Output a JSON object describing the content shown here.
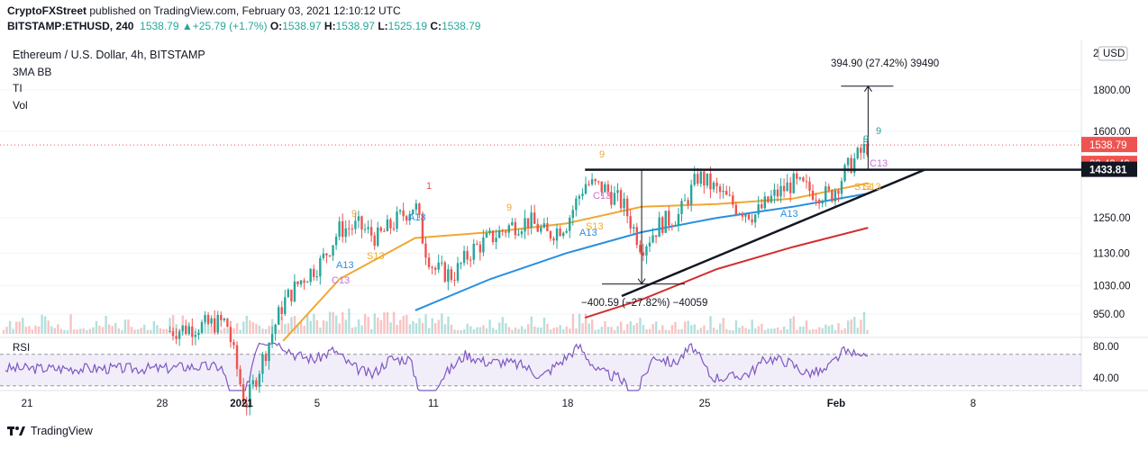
{
  "header": {
    "publisher": "CryptoFXStreet",
    "published_text": "published on TradingView.com, February 03, 2021 12:10:12 UTC",
    "symbol": "BITSTAMP:ETHUSD, 240",
    "last": "1538.79",
    "change": "+25.79 (+1.7%)",
    "o_label": "O:",
    "o_value": "1538.97",
    "h_label": "H:",
    "h_value": "1538.97",
    "l_label": "L:",
    "l_value": "1525.19",
    "c_label": "C:",
    "c_value": "1538.79"
  },
  "legend": {
    "title": "Ethereum / U.S. Dollar, 4h, BITSTAMP",
    "indicators": [
      "3MA BB",
      "TI",
      "Vol"
    ]
  },
  "footer": {
    "brand": "TradingView"
  },
  "chart_data": {
    "type": "candlestick",
    "title": "Ethereum / U.S. Dollar, 4h, BITSTAMP",
    "currency_label": "USD",
    "price_axis": {
      "ticks": [
        950,
        1030,
        1130,
        1250,
        1600,
        1800
      ],
      "tick_labels": [
        "950.00",
        "1030.00",
        "1130.00",
        "1250.00",
        "1600.00",
        "1800.00"
      ],
      "top_label": "2",
      "scale": "log",
      "range": [
        900,
        2050
      ]
    },
    "price_badges": [
      {
        "value": 1538.79,
        "label": "1538.79",
        "color": "#ef5350"
      },
      {
        "label": "03:49:49",
        "color": "#ef5350"
      },
      {
        "value": 1433.81,
        "label": "1433.81",
        "color": "#131722"
      }
    ],
    "time_axis": [
      "21",
      "28",
      "2021",
      "5",
      "11",
      "18",
      "25",
      "Feb",
      "8"
    ],
    "price_path": [
      [
        "2020-12-28",
        905
      ],
      [
        "2020-12-31",
        930
      ],
      [
        "2021-01-01",
        730
      ],
      [
        "2021-01-03",
        980
      ],
      [
        "2021-01-04",
        1050
      ],
      [
        "2021-01-05",
        1100
      ],
      [
        "2021-01-06",
        1210
      ],
      [
        "2021-01-07",
        1220
      ],
      [
        "2021-01-08",
        1180
      ],
      [
        "2021-01-09",
        1240
      ],
      [
        "2021-01-10",
        1300
      ],
      [
        "2021-01-10T12:00",
        1150
      ],
      [
        "2021-01-11",
        1080
      ],
      [
        "2021-01-12",
        1060
      ],
      [
        "2021-01-13",
        1140
      ],
      [
        "2021-01-14",
        1180
      ],
      [
        "2021-01-15",
        1220
      ],
      [
        "2021-01-16",
        1240
      ],
      [
        "2021-01-17",
        1190
      ],
      [
        "2021-01-18",
        1230
      ],
      [
        "2021-01-19",
        1380
      ],
      [
        "2021-01-20",
        1360
      ],
      [
        "2021-01-21",
        1300
      ],
      [
        "2021-01-22",
        1150
      ],
      [
        "2021-01-23",
        1230
      ],
      [
        "2021-01-24",
        1260
      ],
      [
        "2021-01-25",
        1410
      ],
      [
        "2021-01-26",
        1350
      ],
      [
        "2021-01-27",
        1290
      ],
      [
        "2021-01-28",
        1260
      ],
      [
        "2021-01-29",
        1330
      ],
      [
        "2021-01-30",
        1380
      ],
      [
        "2021-01-31",
        1350
      ],
      [
        "2021-02-01",
        1330
      ],
      [
        "2021-02-02",
        1450
      ],
      [
        "2021-02-03",
        1538.79
      ]
    ],
    "moving_averages": [
      {
        "color": "#f0a830",
        "points": [
          [
            "2021-01-03",
            880
          ],
          [
            "2021-01-06",
            1050
          ],
          [
            "2021-01-10",
            1180
          ],
          [
            "2021-01-14",
            1200
          ],
          [
            "2021-01-18",
            1230
          ],
          [
            "2021-01-22",
            1290
          ],
          [
            "2021-01-26",
            1300
          ],
          [
            "2021-01-30",
            1320
          ],
          [
            "2021-02-03",
            1380
          ]
        ]
      },
      {
        "color": "#2a8fde",
        "points": [
          [
            "2021-01-10",
            960
          ],
          [
            "2021-01-14",
            1050
          ],
          [
            "2021-01-18",
            1130
          ],
          [
            "2021-01-22",
            1200
          ],
          [
            "2021-01-26",
            1250
          ],
          [
            "2021-01-30",
            1290
          ],
          [
            "2021-02-03",
            1340
          ]
        ]
      },
      {
        "color": "#d32f2f",
        "points": [
          [
            "2021-01-19",
            940
          ],
          [
            "2021-01-22",
            990
          ],
          [
            "2021-01-26",
            1080
          ],
          [
            "2021-01-30",
            1150
          ],
          [
            "2021-02-03",
            1215
          ]
        ]
      }
    ],
    "annotations": [
      {
        "text": "394.90 (27.42%) 39490",
        "kind": "measure-up"
      },
      {
        "text": "−400.59 (−27.82%) −40059",
        "kind": "measure-down"
      }
    ],
    "td_labels": [
      {
        "text": "9",
        "color": "#26a69a"
      },
      {
        "text": "9",
        "color": "#26a69a"
      },
      {
        "text": "9",
        "color": "#f0a830"
      },
      {
        "text": "9",
        "color": "#f0a830"
      },
      {
        "text": "9",
        "color": "#f0a830"
      },
      {
        "text": "1",
        "color": "#ef5350"
      },
      {
        "text": "A13",
        "color": "#2a8fde"
      },
      {
        "text": "A13",
        "color": "#2a8fde"
      },
      {
        "text": "A13",
        "color": "#2a8fde"
      },
      {
        "text": "A13",
        "color": "#2a8fde"
      },
      {
        "text": "S13",
        "color": "#f0a830"
      },
      {
        "text": "S13",
        "color": "#f0a830"
      },
      {
        "text": "S13",
        "color": "#f0a830"
      },
      {
        "text": "S13",
        "color": "#f0a830"
      },
      {
        "text": "C13",
        "color": "#ce6fd6"
      },
      {
        "text": "C13",
        "color": "#ce6fd6"
      },
      {
        "text": "C13",
        "color": "#ce6fd6"
      }
    ],
    "rsi": {
      "label": "RSI",
      "ticks": [
        40,
        80
      ],
      "tick_labels": [
        "40.00",
        "80.00"
      ],
      "band": [
        30,
        70
      ],
      "last": 72
    }
  }
}
